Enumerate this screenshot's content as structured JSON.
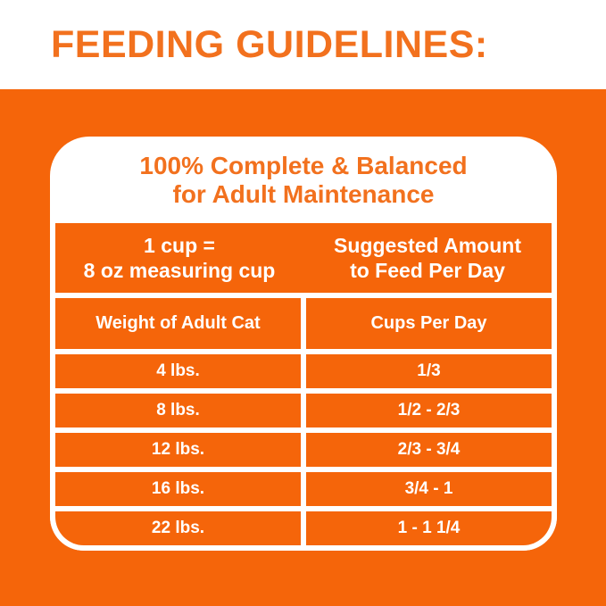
{
  "page": {
    "title": "FEEDING GUIDELINES:"
  },
  "card": {
    "title_line1": "100% Complete & Balanced",
    "title_line2": "for Adult Maintenance",
    "info": {
      "left_line1": "1 cup =",
      "left_line2": "8 oz measuring cup",
      "right_line1": "Suggested Amount",
      "right_line2": "to Feed Per Day"
    },
    "columns": [
      "Weight of Adult Cat",
      "Cups Per Day"
    ],
    "rows": [
      {
        "weight": "4 lbs.",
        "cups": "1/3"
      },
      {
        "weight": "8 lbs.",
        "cups": "1/2 - 2/3"
      },
      {
        "weight": "12 lbs.",
        "cups": "2/3 - 3/4"
      },
      {
        "weight": "16 lbs.",
        "cups": "3/4 - 1"
      },
      {
        "weight": "22 lbs.",
        "cups": "1 - 1 1/4"
      }
    ]
  },
  "colors": {
    "orange_background": "#F5650A",
    "orange_text": "#F2711E",
    "table_text": "#FFFFFF"
  }
}
